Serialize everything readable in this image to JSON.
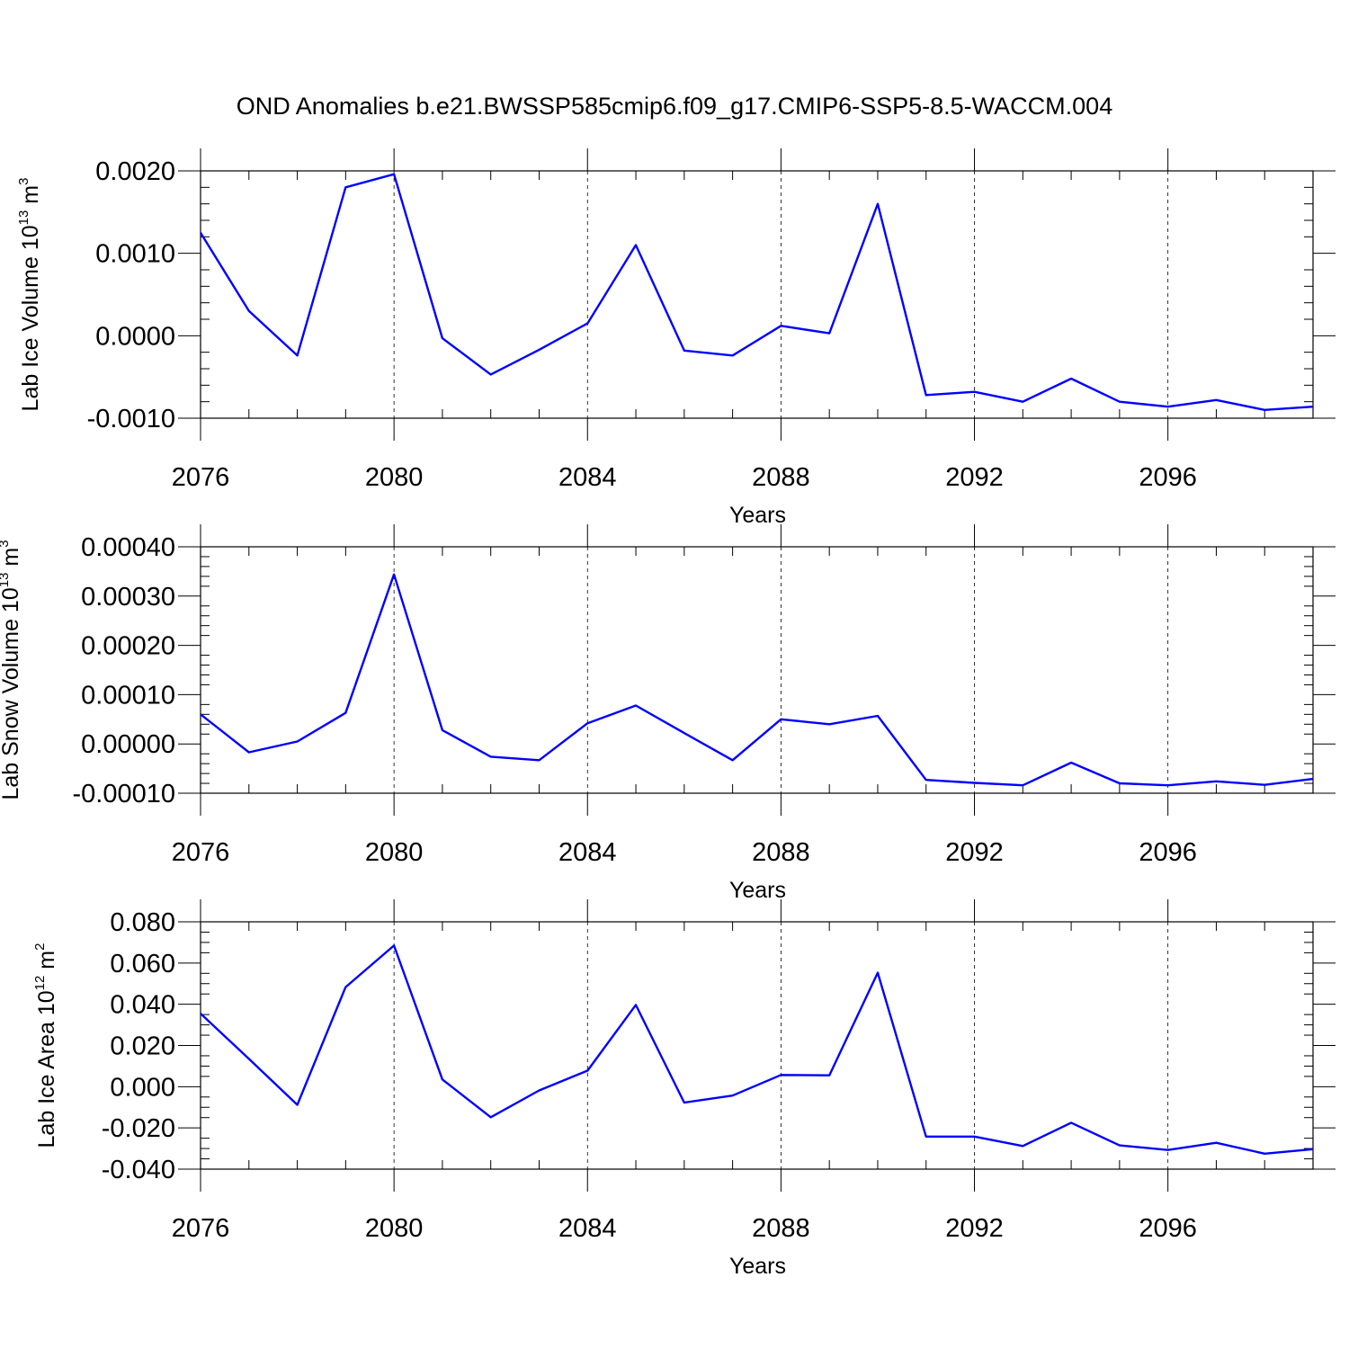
{
  "title": "OND Anomalies b.e21.BWSSP585cmip6.f09_g17.CMIP6-SSP5-8.5-WACCM.004",
  "line_color": "#0000ff",
  "chart_data": [
    {
      "type": "line",
      "ylabel": {
        "prefix": "Lab Ice Volume 10",
        "exp1": "13",
        "unit": " m",
        "exp2": "3"
      },
      "xlabel": "Years",
      "xlim": [
        2076,
        2099
      ],
      "ylim": [
        -0.001,
        0.002
      ],
      "yticks": [
        -0.001,
        0.0,
        0.001,
        0.002
      ],
      "ytick_labels": [
        "-0.0010",
        "0.0000",
        "0.0010",
        "0.0020"
      ],
      "yminor": 0.0002,
      "xticks": [
        2076,
        2080,
        2084,
        2088,
        2092,
        2096
      ],
      "xtick_labels": [
        "2076",
        "2080",
        "2084",
        "2088",
        "2092",
        "2096"
      ],
      "grid": "vertical dashed at major x ticks",
      "series": [
        {
          "x": [
            2076,
            2077,
            2078,
            2079,
            2080,
            2081,
            2082,
            2083,
            2084,
            2085,
            2086,
            2087,
            2088,
            2089,
            2090,
            2091,
            2092,
            2093,
            2094,
            2095,
            2096,
            2097,
            2098,
            2099
          ],
          "values": [
            0.00125,
            0.0003,
            -0.00024,
            0.0018,
            0.00196,
            -3e-05,
            -0.00047,
            -0.00017,
            0.00015,
            0.0011,
            -0.00018,
            -0.00024,
            0.00012,
            3e-05,
            0.0016,
            -0.00072,
            -0.00068,
            -0.0008,
            -0.00052,
            -0.0008,
            -0.00086,
            -0.00078,
            -0.0009,
            -0.00086
          ]
        }
      ]
    },
    {
      "type": "line",
      "ylabel": {
        "prefix": "Lab Snow Volume 10",
        "exp1": "13",
        "unit": " m",
        "exp2": "3"
      },
      "xlabel": "Years",
      "xlim": [
        2076,
        2099
      ],
      "ylim": [
        -0.0001,
        0.0004
      ],
      "yticks": [
        -0.0001,
        0.0,
        0.0001,
        0.0002,
        0.0003,
        0.0004
      ],
      "ytick_labels": [
        "-0.00010",
        "0.00000",
        "0.00010",
        "0.00020",
        "0.00030",
        "0.00040"
      ],
      "yminor": 2e-05,
      "xticks": [
        2076,
        2080,
        2084,
        2088,
        2092,
        2096
      ],
      "xtick_labels": [
        "2076",
        "2080",
        "2084",
        "2088",
        "2092",
        "2096"
      ],
      "grid": "vertical dashed at major x ticks",
      "series": [
        {
          "x": [
            2076,
            2077,
            2078,
            2079,
            2080,
            2081,
            2082,
            2083,
            2084,
            2085,
            2086,
            2087,
            2088,
            2089,
            2090,
            2091,
            2092,
            2093,
            2094,
            2095,
            2096,
            2097,
            2098,
            2099
          ],
          "values": [
            6e-05,
            -1.7e-05,
            5e-06,
            6.3e-05,
            0.000344,
            2.8e-05,
            -2.6e-05,
            -3.3e-05,
            4.2e-05,
            7.8e-05,
            2.2e-05,
            -3.3e-05,
            5e-05,
            4e-05,
            5.7e-05,
            -7.3e-05,
            -7.9e-05,
            -8.4e-05,
            -3.8e-05,
            -8e-05,
            -8.4e-05,
            -7.6e-05,
            -8.3e-05,
            -7.1e-05
          ]
        }
      ]
    },
    {
      "type": "line",
      "ylabel": {
        "prefix": "Lab Ice Area 10",
        "exp1": "12",
        "unit": " m",
        "exp2": "2"
      },
      "xlabel": "Years",
      "xlim": [
        2076,
        2099
      ],
      "ylim": [
        -0.04,
        0.08
      ],
      "yticks": [
        -0.04,
        -0.02,
        0.0,
        0.02,
        0.04,
        0.06,
        0.08
      ],
      "ytick_labels": [
        "-0.040",
        "-0.020",
        "0.000",
        "0.020",
        "0.040",
        "0.060",
        "0.080"
      ],
      "yminor": 0.005,
      "xticks": [
        2076,
        2080,
        2084,
        2088,
        2092,
        2096
      ],
      "xtick_labels": [
        "2076",
        "2080",
        "2084",
        "2088",
        "2092",
        "2096"
      ],
      "grid": "vertical dashed at major x ticks",
      "series": [
        {
          "x": [
            2076,
            2077,
            2078,
            2079,
            2080,
            2081,
            2082,
            2083,
            2084,
            2085,
            2086,
            2087,
            2088,
            2089,
            2090,
            2091,
            2092,
            2093,
            2094,
            2095,
            2096,
            2097,
            2098,
            2099
          ],
          "values": [
            0.0355,
            0.0135,
            -0.0088,
            0.0483,
            0.0685,
            0.0035,
            -0.0148,
            -0.0018,
            0.0078,
            0.0397,
            -0.0077,
            -0.0043,
            0.0057,
            0.0055,
            0.0553,
            -0.0242,
            -0.0242,
            -0.0288,
            -0.0175,
            -0.0285,
            -0.0307,
            -0.0272,
            -0.0325,
            -0.0303
          ]
        }
      ]
    }
  ]
}
